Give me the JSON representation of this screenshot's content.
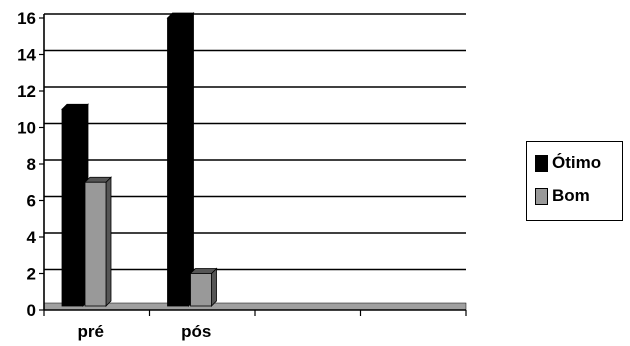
{
  "chart_data": {
    "type": "bar",
    "categories": [
      "pré",
      "pós",
      "",
      ""
    ],
    "series": [
      {
        "name": "Ótimo",
        "values": [
          11,
          16,
          0,
          0
        ],
        "color": "#000000"
      },
      {
        "name": "Bom",
        "values": [
          7,
          2,
          0,
          0
        ],
        "color": "#999999"
      }
    ],
    "ylim": [
      0,
      16
    ],
    "yticks": [
      "0",
      "2",
      "4",
      "6",
      "8",
      "10",
      "12",
      "14",
      "16"
    ],
    "grid": true,
    "legend_position": "right"
  },
  "legend": {
    "items": [
      {
        "label": "Ótimo",
        "color": "#000000"
      },
      {
        "label": "Bom",
        "color": "#999999"
      }
    ]
  }
}
